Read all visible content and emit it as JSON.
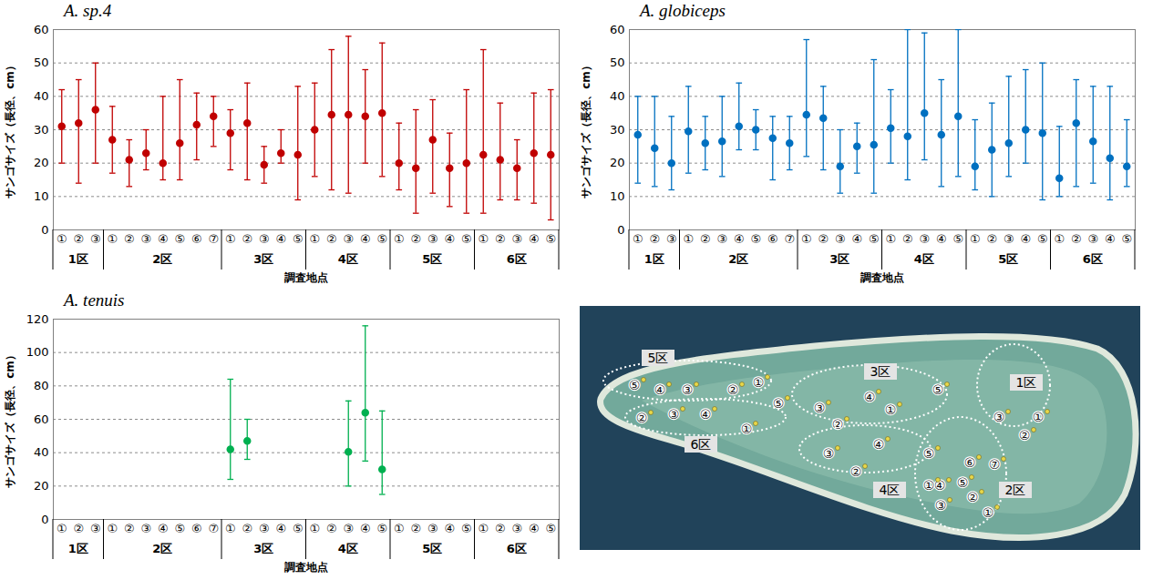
{
  "chart_data": [
    {
      "type": "scatter",
      "title": "A. sp.4",
      "categories": [
        "①",
        "②",
        "③",
        "①",
        "②",
        "③",
        "④",
        "⑤",
        "⑥",
        "⑦",
        "①",
        "②",
        "③",
        "④",
        "⑤",
        "①",
        "②",
        "③",
        "④",
        "⑤",
        "①",
        "②",
        "③",
        "④",
        "⑤",
        "①",
        "②",
        "③",
        "④",
        "⑤"
      ],
      "groups": [
        "1区",
        "1区",
        "1区",
        "2区",
        "2区",
        "2区",
        "2区",
        "2区",
        "2区",
        "2区",
        "3区",
        "3区",
        "3区",
        "3区",
        "3区",
        "4区",
        "4区",
        "4区",
        "4区",
        "4区",
        "5区",
        "5区",
        "5区",
        "5区",
        "5区",
        "6区",
        "6区",
        "6区",
        "6区",
        "6区"
      ],
      "values": [
        31,
        32,
        36,
        27,
        21,
        23,
        20,
        26,
        31.5,
        34,
        29,
        32,
        19.5,
        23,
        22.5,
        30,
        34.5,
        34.5,
        34,
        35,
        20,
        18.5,
        27,
        18.5,
        20,
        22.5,
        21,
        18.5,
        23,
        22.5
      ],
      "error_low": [
        20,
        14,
        20,
        17,
        13,
        18,
        15,
        15,
        21,
        25,
        18,
        15,
        14,
        20,
        9,
        16,
        12,
        11,
        20,
        16,
        12,
        5,
        11,
        7,
        5,
        5,
        9,
        9,
        8,
        3
      ],
      "error_high": [
        42,
        45,
        50,
        37,
        27,
        30,
        40,
        45,
        41,
        40,
        36,
        44,
        25,
        30,
        43,
        44,
        54,
        58,
        48,
        56,
        32,
        36,
        39,
        29,
        42,
        54,
        38,
        27,
        41,
        42
      ],
      "color": "#c00000",
      "marker": "circle",
      "xlabel": "調査地点",
      "ylabel": "サンゴサイズ（長径、cm）",
      "ylim": [
        0,
        60
      ],
      "yticks": [
        0,
        10,
        20,
        30,
        40,
        50,
        60
      ],
      "grid": true
    },
    {
      "type": "scatter",
      "title": "A. globiceps",
      "categories": [
        "①",
        "②",
        "③",
        "①",
        "②",
        "③",
        "④",
        "⑤",
        "⑥",
        "⑦",
        "①",
        "②",
        "③",
        "④",
        "⑤",
        "①",
        "②",
        "③",
        "④",
        "⑤",
        "①",
        "②",
        "③",
        "④",
        "⑤",
        "①",
        "②",
        "③",
        "④",
        "⑤"
      ],
      "groups": [
        "1区",
        "1区",
        "1区",
        "2区",
        "2区",
        "2区",
        "2区",
        "2区",
        "2区",
        "2区",
        "3区",
        "3区",
        "3区",
        "3区",
        "3区",
        "4区",
        "4区",
        "4区",
        "4区",
        "4区",
        "5区",
        "5区",
        "5区",
        "5区",
        "5区",
        "6区",
        "6区",
        "6区",
        "6区",
        "6区"
      ],
      "values": [
        28.5,
        24.5,
        20,
        29.5,
        26,
        26.5,
        31,
        30,
        27.5,
        26,
        34.5,
        33.5,
        19,
        25,
        25.5,
        30.5,
        28,
        35,
        28.5,
        34,
        19,
        24,
        26,
        30,
        29,
        15.5,
        32,
        26.5,
        21.5,
        19
      ],
      "error_low": [
        14,
        13,
        12,
        17,
        18,
        16,
        24,
        24,
        15,
        18,
        22,
        18,
        11,
        17,
        11,
        20,
        15,
        21,
        13,
        16,
        12,
        10,
        16,
        20,
        9,
        10,
        13,
        14,
        9,
        13
      ],
      "error_high": [
        40,
        40,
        34,
        43,
        34,
        40,
        44,
        36,
        34,
        34,
        57,
        43,
        30,
        32,
        51,
        42,
        60,
        59,
        45,
        60,
        33,
        38,
        46,
        48,
        50,
        31,
        45,
        43,
        43,
        33
      ],
      "color": "#0070c0",
      "marker": "circle",
      "xlabel": "調査地点",
      "ylabel": "サンゴサイズ（長径、cm）",
      "ylim": [
        0,
        60
      ],
      "yticks": [
        0,
        10,
        20,
        30,
        40,
        50,
        60
      ],
      "grid": true
    },
    {
      "type": "scatter",
      "title": "A. tenuis",
      "categories": [
        "①",
        "②",
        "③",
        "①",
        "②",
        "③",
        "④",
        "⑤",
        "⑥",
        "⑦",
        "①",
        "②",
        "③",
        "④",
        "⑤",
        "①",
        "②",
        "③",
        "④",
        "⑤",
        "①",
        "②",
        "③",
        "④",
        "⑤",
        "①",
        "②",
        "③",
        "④",
        "⑤"
      ],
      "groups": [
        "1区",
        "1区",
        "1区",
        "2区",
        "2区",
        "2区",
        "2区",
        "2区",
        "2区",
        "2区",
        "3区",
        "3区",
        "3区",
        "3区",
        "3区",
        "4区",
        "4区",
        "4区",
        "4区",
        "4区",
        "5区",
        "5区",
        "5区",
        "5区",
        "5区",
        "6区",
        "6区",
        "6区",
        "6区",
        "6区"
      ],
      "values": [
        null,
        null,
        null,
        null,
        null,
        null,
        null,
        null,
        null,
        null,
        42,
        47,
        null,
        null,
        null,
        null,
        null,
        40.5,
        64,
        30,
        null,
        null,
        null,
        null,
        null,
        null,
        null,
        null,
        null,
        null
      ],
      "error_low": [
        null,
        null,
        null,
        null,
        null,
        null,
        null,
        null,
        null,
        null,
        24,
        36,
        null,
        null,
        null,
        null,
        null,
        20,
        35,
        15,
        null,
        null,
        null,
        null,
        null,
        null,
        null,
        null,
        null,
        null
      ],
      "error_high": [
        null,
        null,
        null,
        null,
        null,
        null,
        null,
        null,
        null,
        null,
        84,
        60,
        null,
        null,
        null,
        null,
        null,
        71,
        116,
        65,
        null,
        null,
        null,
        null,
        null,
        null,
        null,
        null,
        null,
        null
      ],
      "color": "#00b050",
      "marker": "circle",
      "xlabel": "調査地点",
      "ylabel": "サンゴサイズ（長径、cm）",
      "ylim": [
        0,
        120
      ],
      "yticks": [
        0,
        20,
        40,
        60,
        80,
        100,
        120
      ],
      "grid": true
    }
  ],
  "map": {
    "zones": [
      {
        "label": "1区",
        "sites": [
          "①",
          "②",
          "③"
        ]
      },
      {
        "label": "2区",
        "sites": [
          "①",
          "②",
          "③",
          "④",
          "⑤",
          "⑥",
          "⑦"
        ]
      },
      {
        "label": "3区",
        "sites": [
          "①",
          "②",
          "③",
          "④",
          "⑤"
        ]
      },
      {
        "label": "4区",
        "sites": [
          "①",
          "②",
          "③",
          "④",
          "⑤"
        ]
      },
      {
        "label": "5区",
        "sites": [
          "①",
          "②",
          "③",
          "④",
          "⑤"
        ]
      },
      {
        "label": "6区",
        "sites": [
          "①",
          "②",
          "③",
          "④",
          "⑤"
        ]
      }
    ]
  }
}
